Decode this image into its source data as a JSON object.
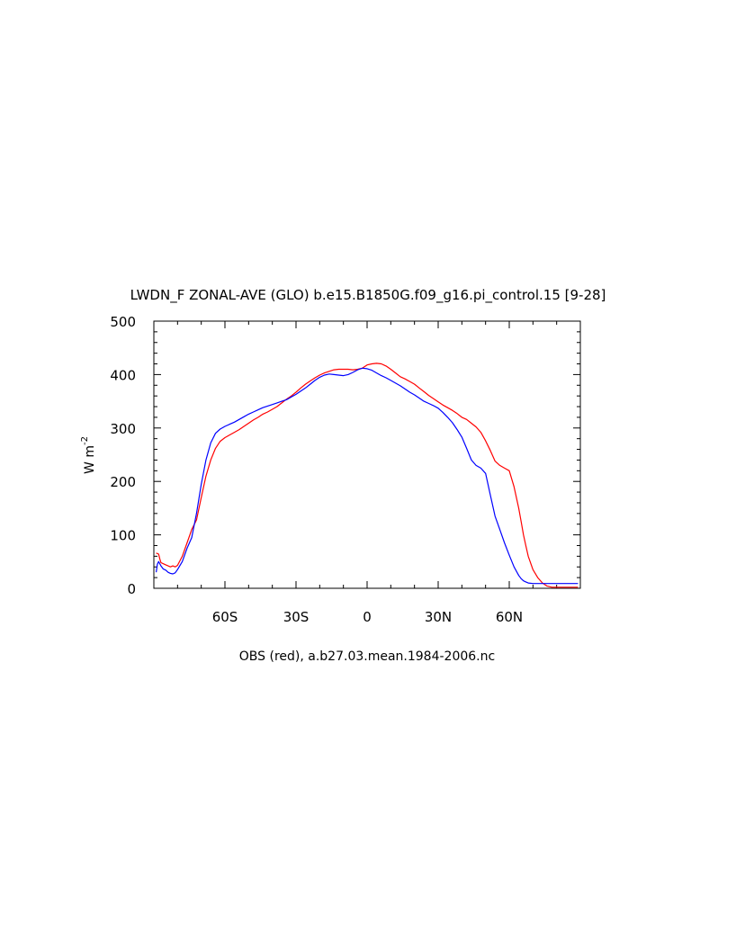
{
  "chart_data": {
    "type": "line",
    "title": "LWDN_F ZONAL-AVE (GLO) b.e15.B1850G.f09_g16.pi_control.15 [9-28]",
    "ylabel": "W m",
    "ylabel_sup": "-2",
    "caption": "OBS (red), a.b27.03.mean.1984-2006.nc",
    "xlim": [
      -90,
      90
    ],
    "ylim": [
      0,
      500
    ],
    "xticks": [
      -60,
      -30,
      0,
      30,
      60
    ],
    "xtick_labels": [
      "60S",
      "30S",
      "0",
      "30N",
      "60N"
    ],
    "yticks": [
      0,
      100,
      200,
      300,
      400,
      500
    ],
    "ytick_labels": [
      "0",
      "100",
      "200",
      "300",
      "400",
      "500"
    ],
    "grid": false,
    "series": [
      {
        "color": "#ff0000",
        "x": [
          -89,
          -88,
          -87.5,
          -87,
          -86,
          -85,
          -84,
          -83,
          -82,
          -81,
          -80,
          -78,
          -76,
          -74,
          -72,
          -70,
          -68,
          -66,
          -64,
          -62,
          -60,
          -58,
          -56,
          -54,
          -52,
          -50,
          -48,
          -46,
          -44,
          -42,
          -40,
          -38,
          -36,
          -34,
          -32,
          -30,
          -28,
          -26,
          -24,
          -22,
          -20,
          -18,
          -16,
          -14,
          -12,
          -10,
          -8,
          -6,
          -4,
          -2,
          0,
          2,
          4,
          6,
          8,
          10,
          12,
          14,
          16,
          18,
          20,
          22,
          24,
          26,
          28,
          30,
          32,
          34,
          36,
          38,
          40,
          42,
          44,
          46,
          48,
          50,
          52,
          54,
          56,
          58,
          60,
          62,
          64,
          65,
          66,
          67,
          68,
          70,
          72,
          74,
          76,
          78,
          80,
          81,
          82,
          83,
          84,
          86,
          88,
          89
        ],
        "y": [
          66,
          64,
          55,
          48,
          46,
          44,
          42,
          40,
          42,
          40,
          43,
          60,
          85,
          110,
          128,
          170,
          210,
          240,
          262,
          275,
          282,
          287,
          292,
          297,
          303,
          309,
          315,
          320,
          326,
          330,
          335,
          340,
          347,
          354,
          360,
          367,
          375,
          382,
          388,
          394,
          399,
          403,
          406,
          409,
          410,
          410,
          410,
          409,
          410,
          412,
          418,
          420,
          421,
          420,
          416,
          410,
          403,
          396,
          392,
          387,
          382,
          375,
          368,
          361,
          355,
          349,
          343,
          338,
          333,
          327,
          320,
          316,
          309,
          302,
          292,
          276,
          258,
          238,
          230,
          225,
          220,
          190,
          150,
          125,
          100,
          80,
          60,
          35,
          20,
          10,
          4,
          2,
          2,
          2,
          2,
          2,
          2,
          2,
          2,
          2
        ]
      },
      {
        "color": "#0000ff",
        "x": [
          -89,
          -88.5,
          -88,
          -87,
          -86,
          -85,
          -84,
          -83,
          -82,
          -81,
          -80,
          -78,
          -76,
          -74,
          -72,
          -70,
          -68,
          -66,
          -64,
          -62,
          -60,
          -58,
          -56,
          -54,
          -52,
          -50,
          -48,
          -46,
          -44,
          -42,
          -40,
          -38,
          -36,
          -34,
          -32,
          -30,
          -28,
          -26,
          -24,
          -22,
          -20,
          -18,
          -16,
          -14,
          -12,
          -10,
          -8,
          -6,
          -4,
          -2,
          0,
          2,
          4,
          6,
          8,
          10,
          12,
          14,
          16,
          18,
          20,
          22,
          24,
          26,
          28,
          30,
          32,
          34,
          36,
          38,
          40,
          42,
          44,
          46,
          48,
          50,
          52,
          54,
          56,
          58,
          60,
          62,
          64,
          65,
          66,
          67,
          68,
          70,
          72,
          74,
          76,
          78,
          80,
          81,
          82,
          84,
          86,
          88,
          89
        ],
        "y": [
          30,
          45,
          50,
          42,
          36,
          34,
          30,
          28,
          27,
          29,
          35,
          50,
          75,
          95,
          140,
          195,
          240,
          272,
          290,
          298,
          303,
          307,
          311,
          316,
          321,
          326,
          330,
          334,
          338,
          341,
          344,
          347,
          350,
          353,
          358,
          363,
          369,
          375,
          382,
          389,
          395,
          399,
          401,
          400,
          399,
          398,
          400,
          404,
          409,
          412,
          411,
          408,
          403,
          398,
          394,
          389,
          384,
          379,
          373,
          367,
          362,
          356,
          350,
          346,
          342,
          337,
          329,
          320,
          310,
          297,
          283,
          262,
          240,
          230,
          225,
          215,
          175,
          135,
          110,
          85,
          62,
          40,
          24,
          18,
          14,
          12,
          10,
          9,
          9,
          9,
          9,
          9,
          9,
          9,
          9,
          9,
          9,
          9,
          9
        ]
      }
    ]
  }
}
